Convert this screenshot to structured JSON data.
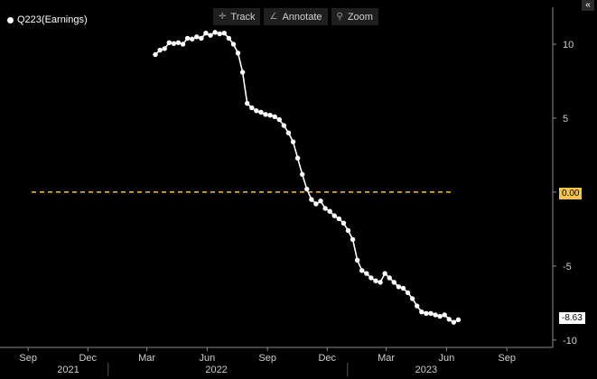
{
  "legend": {
    "label": "Q223(Earnings)"
  },
  "toolbar": {
    "track": "Track",
    "annotate": "Annotate",
    "zoom": "Zoom"
  },
  "collapse_label": "«",
  "value_tags": {
    "zero": "0.00",
    "last": "-8.63"
  },
  "colors": {
    "background": "#000000",
    "series": "#ffffff",
    "zero_line": "#f6c445"
  },
  "chart_data": {
    "type": "line",
    "title": "",
    "xlabel": "",
    "ylabel": "",
    "ylim": [
      -10.5,
      12.5
    ],
    "y_ticks": [
      10,
      5,
      0,
      -5,
      -10
    ],
    "x_month_ticks": [
      {
        "label": "Sep",
        "date": "2021-09-01"
      },
      {
        "label": "Dec",
        "date": "2021-12-01"
      },
      {
        "label": "Mar",
        "date": "2022-03-01"
      },
      {
        "label": "Jun",
        "date": "2022-06-01"
      },
      {
        "label": "Sep",
        "date": "2022-09-01"
      },
      {
        "label": "Dec",
        "date": "2022-12-01"
      },
      {
        "label": "Mar",
        "date": "2023-03-01"
      },
      {
        "label": "Jun",
        "date": "2023-06-01"
      },
      {
        "label": "Sep",
        "date": "2023-09-01"
      }
    ],
    "x_year_labels": [
      {
        "label": "2021",
        "date": "2021-11-01"
      },
      {
        "label": "2022",
        "date": "2022-06-15"
      },
      {
        "label": "2023",
        "date": "2023-05-01"
      }
    ],
    "x_year_separators": [
      "2022-01-01",
      "2023-01-01"
    ],
    "xlim": [
      "2021-07-20",
      "2023-11-10"
    ],
    "reference_line": {
      "y": 0,
      "label": "0.00"
    },
    "series": [
      {
        "points": [
          [
            "2022-03-14",
            9.3
          ],
          [
            "2022-03-21",
            9.6
          ],
          [
            "2022-03-28",
            9.7
          ],
          [
            "2022-04-04",
            10.1
          ],
          [
            "2022-04-11",
            10.05
          ],
          [
            "2022-04-18",
            10.1
          ],
          [
            "2022-04-25",
            10.0
          ],
          [
            "2022-05-02",
            10.4
          ],
          [
            "2022-05-09",
            10.35
          ],
          [
            "2022-05-16",
            10.5
          ],
          [
            "2022-05-23",
            10.4
          ],
          [
            "2022-05-30",
            10.75
          ],
          [
            "2022-06-06",
            10.6
          ],
          [
            "2022-06-13",
            10.8
          ],
          [
            "2022-06-20",
            10.7
          ],
          [
            "2022-06-27",
            10.75
          ],
          [
            "2022-07-04",
            10.4
          ],
          [
            "2022-07-11",
            10.0
          ],
          [
            "2022-07-18",
            9.4
          ],
          [
            "2022-07-25",
            8.1
          ],
          [
            "2022-08-01",
            6.0
          ],
          [
            "2022-08-08",
            5.7
          ],
          [
            "2022-08-15",
            5.5
          ],
          [
            "2022-08-22",
            5.4
          ],
          [
            "2022-08-29",
            5.25
          ],
          [
            "2022-09-05",
            5.2
          ],
          [
            "2022-09-12",
            5.1
          ],
          [
            "2022-09-19",
            4.9
          ],
          [
            "2022-09-26",
            4.5
          ],
          [
            "2022-10-03",
            4.0
          ],
          [
            "2022-10-10",
            3.4
          ],
          [
            "2022-10-17",
            2.3
          ],
          [
            "2022-10-24",
            1.2
          ],
          [
            "2022-10-31",
            0.2
          ],
          [
            "2022-11-07",
            -0.5
          ],
          [
            "2022-11-14",
            -0.8
          ],
          [
            "2022-11-21",
            -0.6
          ],
          [
            "2022-11-28",
            -1.1
          ],
          [
            "2022-12-05",
            -1.3
          ],
          [
            "2022-12-12",
            -1.6
          ],
          [
            "2022-12-19",
            -1.8
          ],
          [
            "2022-12-26",
            -2.1
          ],
          [
            "2023-01-02",
            -2.6
          ],
          [
            "2023-01-09",
            -3.2
          ],
          [
            "2023-01-16",
            -4.6
          ],
          [
            "2023-01-23",
            -5.3
          ],
          [
            "2023-01-30",
            -5.5
          ],
          [
            "2023-02-06",
            -5.8
          ],
          [
            "2023-02-13",
            -6.0
          ],
          [
            "2023-02-20",
            -6.1
          ],
          [
            "2023-02-27",
            -5.5
          ],
          [
            "2023-03-06",
            -5.8
          ],
          [
            "2023-03-13",
            -6.1
          ],
          [
            "2023-03-20",
            -6.4
          ],
          [
            "2023-03-27",
            -6.5
          ],
          [
            "2023-04-03",
            -6.8
          ],
          [
            "2023-04-10",
            -7.2
          ],
          [
            "2023-04-17",
            -7.7
          ],
          [
            "2023-04-24",
            -8.1
          ],
          [
            "2023-05-01",
            -8.2
          ],
          [
            "2023-05-08",
            -8.2
          ],
          [
            "2023-05-15",
            -8.3
          ],
          [
            "2023-05-22",
            -8.4
          ],
          [
            "2023-05-29",
            -8.3
          ],
          [
            "2023-06-05",
            -8.6
          ],
          [
            "2023-06-12",
            -8.8
          ],
          [
            "2023-06-19",
            -8.63
          ]
        ]
      }
    ]
  }
}
